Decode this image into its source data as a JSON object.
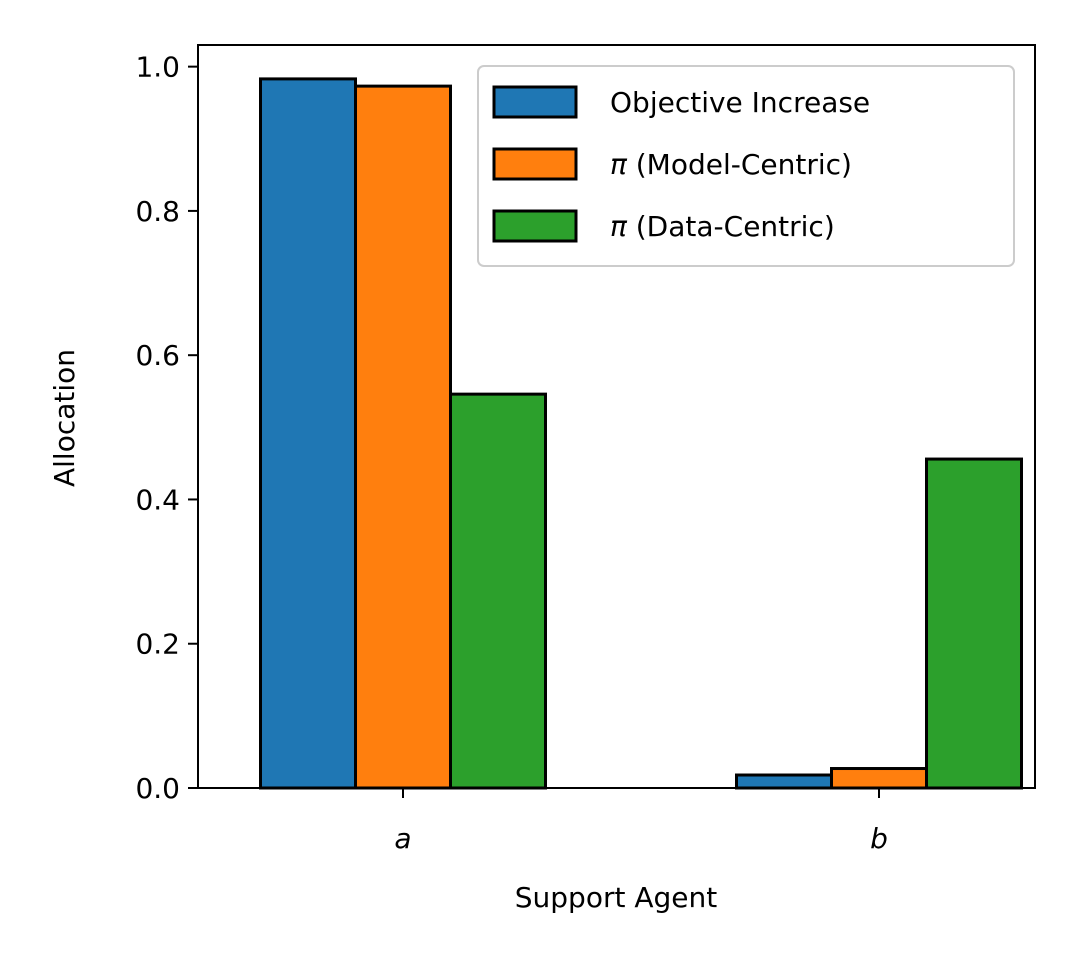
{
  "chart_data": {
    "type": "bar",
    "title": "",
    "xlabel": "Support Agent",
    "ylabel": "Allocation",
    "categories": [
      "a",
      "b"
    ],
    "ylim": [
      0,
      1.03
    ],
    "yticks": [
      "0.0",
      "0.2",
      "0.4",
      "0.6",
      "0.8",
      "1.0"
    ],
    "grid": false,
    "legend_position": "top-right",
    "series": [
      {
        "name": "Objective Increase",
        "values": [
          0.983,
          0.018
        ],
        "color": "#1f77b4"
      },
      {
        "name": "π (Model-Centric)",
        "values": [
          0.973,
          0.027
        ],
        "color": "#ff7f0e"
      },
      {
        "name": "π (Data-Centric)",
        "values": [
          0.546,
          0.456
        ],
        "color": "#2ca02c"
      }
    ]
  }
}
